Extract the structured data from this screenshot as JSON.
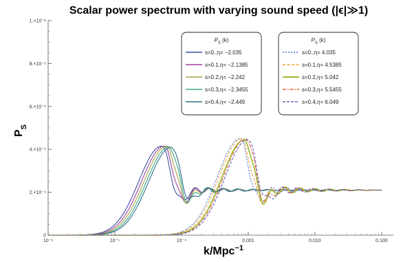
{
  "chart_data": {
    "type": "line",
    "title": "Scalar power spectrum with varying sound speed (|ϵ|≫1)",
    "xlabel": "k/Mpc⁻¹",
    "ylabel": "P_S",
    "x_scale": "log",
    "xlim": [
      1e-06,
      0.15
    ],
    "ylim": [
      0,
      1e-08
    ],
    "x_ticks": [
      {
        "value": 1e-06,
        "label": "10⁻⁶"
      },
      {
        "value": 1e-05,
        "label": "10⁻⁵"
      },
      {
        "value": 0.0001,
        "label": "10⁻⁴"
      },
      {
        "value": 0.001,
        "label": "0.001"
      },
      {
        "value": 0.01,
        "label": "0.010"
      },
      {
        "value": 0.1,
        "label": "0.100"
      }
    ],
    "y_ticks": [
      {
        "value": 0,
        "label": "0"
      },
      {
        "value": 2e-09,
        "label": "2.×10⁻⁹"
      },
      {
        "value": 4e-09,
        "label": "4.×10⁻⁹"
      },
      {
        "value": 6e-09,
        "label": "6.×10⁻⁹"
      },
      {
        "value": 8e-09,
        "label": "8.×10⁻⁹"
      },
      {
        "value": 1e-08,
        "label": "1.×10⁻⁸"
      }
    ],
    "legend_position": "top-right",
    "legend_groups": [
      {
        "header": "P_S (k)",
        "style": "solid",
        "series": [
          {
            "name": "s=0.,η= −2.035",
            "color": "#3b4f9e",
            "peak_k": 5e-05,
            "peak_value": 4.15e-09
          },
          {
            "name": "s=0.1,η= −2.1385",
            "color": "#9b3fa0",
            "peak_k": 5.5e-05,
            "peak_value": 4.15e-09
          },
          {
            "name": "s=0.2,η= −2.242",
            "color": "#a8a040",
            "peak_k": 6e-05,
            "peak_value": 4.15e-09
          },
          {
            "name": "s=0.3,η= −2.3455",
            "color": "#3aa680",
            "peak_k": 6.5e-05,
            "peak_value": 4.12e-09
          },
          {
            "name": "s=0.4,η= −2.449",
            "color": "#2e6e8e",
            "peak_k": 7e-05,
            "peak_value": 4.1e-09
          }
        ]
      },
      {
        "header": "P_S (k)",
        "style": "dashed",
        "series": [
          {
            "name": "s=0.,η= 4.035",
            "color": "#4a6fd0",
            "peak_k": 0.00075,
            "peak_value": 4.5e-09
          },
          {
            "name": "s=0.1,η= 4.5385",
            "color": "#f0a030",
            "peak_k": 0.0008,
            "peak_value": 4.5e-09
          },
          {
            "name": "s=0.2,η= 5.042",
            "color": "#9ab830",
            "peak_k": 0.00088,
            "peak_value": 4.45e-09
          },
          {
            "name": "s=0.3,η= 5.5455",
            "color": "#e05a30",
            "peak_k": 0.00093,
            "peak_value": 4.5e-09
          },
          {
            "name": "s=0.4,η= 6.049",
            "color": "#6a60b8",
            "peak_k": 0.00098,
            "peak_value": 4.45e-09
          }
        ]
      }
    ],
    "plateau_value": 2.1e-09
  }
}
